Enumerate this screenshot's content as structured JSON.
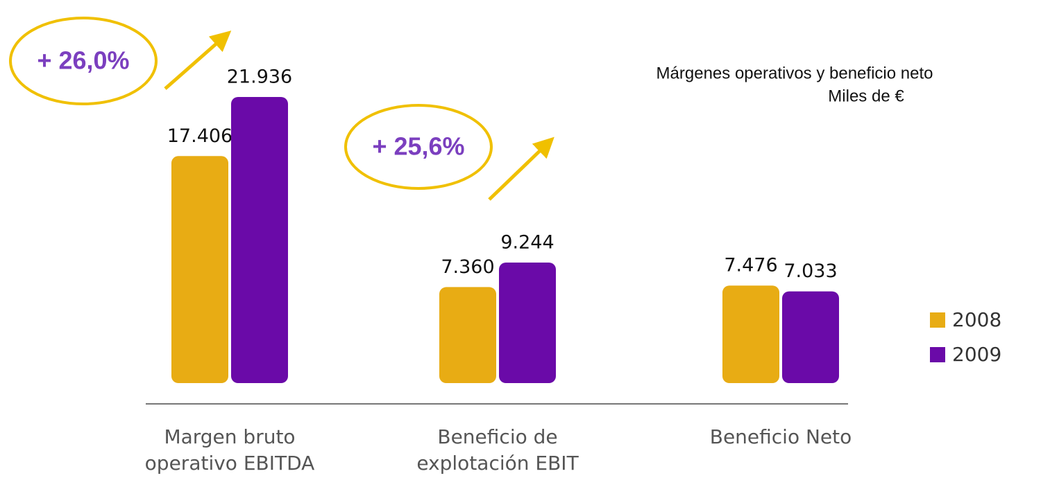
{
  "chart_data": {
    "type": "bar",
    "title": "Márgenes operativos y beneficio neto",
    "subtitle": "Miles de €",
    "categories": [
      "Margen bruto\noperativo EBITDA",
      "Beneficio de\nexplotación EBIT",
      "Beneficio Neto"
    ],
    "series": [
      {
        "name": "2008",
        "color": "#e8ac14",
        "values": [
          17406,
          7360,
          7476
        ],
        "value_labels": [
          "17.406",
          "7.360",
          "7.476"
        ]
      },
      {
        "name": "2009",
        "color": "#6a0aa8",
        "values": [
          21936,
          9244,
          7033
        ],
        "value_labels": [
          "21.936",
          "9.244",
          "7.033"
        ]
      }
    ],
    "annotations": [
      {
        "text": "+ 26,0%"
      },
      {
        "text": "+ 25,6%"
      }
    ],
    "legend": "right"
  }
}
